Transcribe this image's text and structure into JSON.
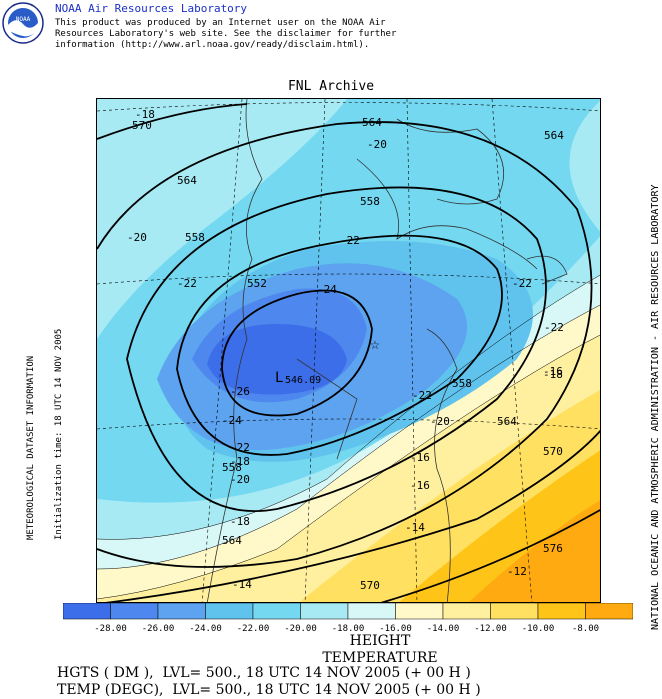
{
  "header": {
    "org": "NOAA Air Resources Laboratory",
    "logo_text": "NOAA",
    "disclaimer": [
      "This product was produced by an Internet user on the NOAA Air",
      "Resources Laboratory's web site.  See the disclaimer for further",
      "information (http://www.arl.noaa.gov/ready/disclaim.html)."
    ]
  },
  "map": {
    "title": "FNL Archive",
    "low_label": "L",
    "low_value": "546.09",
    "height_labels": [
      "564",
      "564",
      "564",
      "558",
      "558",
      "552",
      "558",
      "558",
      "564",
      "564",
      "570",
      "570",
      "576",
      "570"
    ],
    "temp_labels": [
      "-18",
      "-20",
      "-20",
      "-22",
      "-22",
      "-22",
      "-24",
      "-26",
      "-24",
      "-22",
      "-22",
      "-22",
      "-20",
      "-20",
      "-18",
      "-16",
      "-18",
      "-16",
      "-14",
      "-18",
      "-14",
      "-12",
      "-16"
    ]
  },
  "left_info": "METEOROLOGICAL DATASET INFORMATION",
  "left_time": "Initialization time: 18 UTC 14 NOV 2005",
  "right_credit": "NATIONAL OCEANIC AND ATMOSPHERIC ADMINISTRATION - AIR RESOURCES LABORATORY",
  "colorbar": {
    "colors": [
      "#3c6eea",
      "#4e88ee",
      "#5da3ef",
      "#5fc3ee",
      "#74d8f0",
      "#a8eaf4",
      "#d8f8f8",
      "#fff8c8",
      "#fff0a0",
      "#ffe060",
      "#ffc418",
      "#ffaa10"
    ],
    "ticks": [
      "-28.00",
      "-26.00",
      "-24.00",
      "-22.00",
      "-20.00",
      "-18.00",
      "-16.00",
      "-14.00",
      "-12.00",
      "-10.00",
      "-8.00"
    ]
  },
  "legend": {
    "height": "HEIGHT",
    "temperature": "TEMPERATURE"
  },
  "footer": {
    "line1": "HGTS ( DM ),  LVL= 500., 18 UTC 14 NOV 2005 (+ 00 H )",
    "line2": "TEMP (DEGC),  LVL= 500., 18 UTC 14 NOV 2005 (+ 00 H )"
  }
}
